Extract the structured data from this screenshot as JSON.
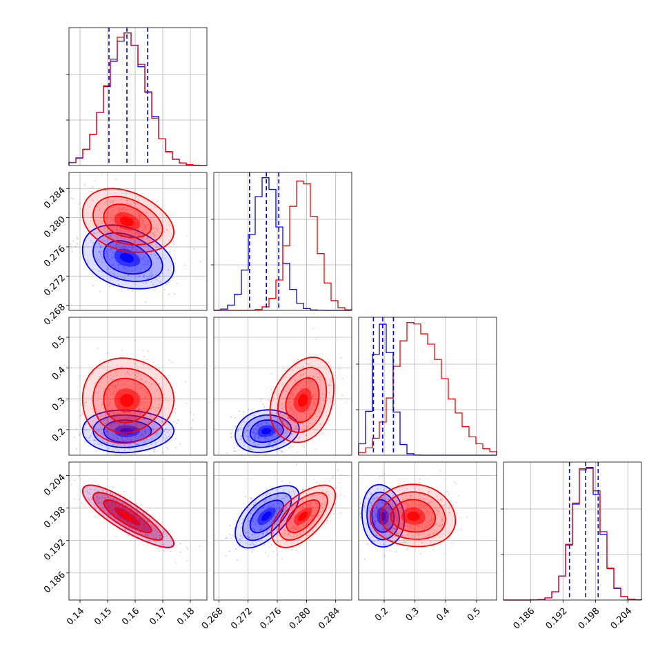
{
  "chart_data": {
    "type": "corner",
    "colors": {
      "series_a": "#0000ff",
      "series_b": "#ff0000"
    },
    "grid": true,
    "quantile_lines": "dashed blue lines on diagonal histograms",
    "params": [
      {
        "range": [
          0.136,
          0.186
        ],
        "ticks": [
          0.14,
          0.15,
          0.16,
          0.17,
          0.18
        ],
        "tick_labels": [
          "0.14",
          "0.15",
          "0.16",
          "0.17",
          "0.18"
        ]
      },
      {
        "range": [
          0.2673,
          0.2862
        ],
        "ticks": [
          0.268,
          0.272,
          0.276,
          0.28,
          0.284
        ],
        "tick_labels": [
          "0.268",
          "0.272",
          "0.276",
          "0.280",
          "0.284"
        ]
      },
      {
        "range": [
          0.117,
          0.565
        ],
        "ticks": [
          0.2,
          0.3,
          0.4,
          0.5
        ],
        "tick_labels": [
          "0.2",
          "0.3",
          "0.4",
          "0.5"
        ]
      },
      {
        "range": [
          0.181,
          0.2065
        ],
        "ticks": [
          0.186,
          0.192,
          0.198,
          0.204
        ],
        "tick_labels": [
          "0.186",
          "0.192",
          "0.198",
          "0.204"
        ]
      }
    ],
    "marginals": [
      {
        "series_a": {
          "mean": 0.157,
          "sd": 0.0072
        },
        "series_b": {
          "mean": 0.157,
          "sd": 0.0072
        },
        "quantiles_a": [
          0.1505,
          0.157,
          0.1645
        ]
      },
      {
        "series_a": {
          "mean": 0.2745,
          "sd": 0.0019
        },
        "series_b": {
          "mean": 0.2795,
          "sd": 0.0019
        },
        "quantiles_a": [
          0.2722,
          0.2745,
          0.2762
        ]
      },
      {
        "series_a": {
          "mean": 0.195,
          "sd": 0.03
        },
        "series_b": {
          "mean": 0.295,
          "sd": 0.06
        },
        "quantiles_a": [
          0.165,
          0.195,
          0.23
        ]
      },
      {
        "series_a": {
          "mean": 0.1965,
          "sd": 0.0025
        },
        "series_b": {
          "mean": 0.1965,
          "sd": 0.0025
        },
        "quantiles_a": [
          0.1932,
          0.1962,
          0.1985
        ]
      }
    ],
    "correlations": {
      "1-0": {
        "a": -0.3,
        "b": -0.3
      },
      "2-0": {
        "a": 0.0,
        "b": 0.0
      },
      "2-1": {
        "a": 0.15,
        "b": 0.25
      },
      "3-0": {
        "a": -0.85,
        "b": -0.85
      },
      "3-1": {
        "a": 0.6,
        "b": 0.6
      },
      "3-2": {
        "a": -0.1,
        "b": -0.05
      }
    }
  }
}
